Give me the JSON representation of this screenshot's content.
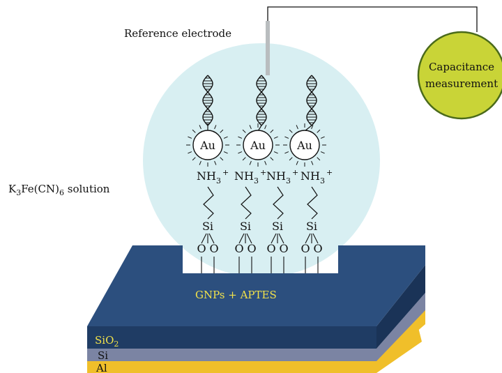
{
  "labels": {
    "reference_electrode": "Reference electrode",
    "capacitance_line1": "Capacitance",
    "capacitance_line2": "measurement",
    "solution_k": "K",
    "solution_sub3": "3",
    "solution_mid": "Fe(CN)",
    "solution_sub6": "6",
    "solution_end": " solution",
    "surface": "GNPs + APTES",
    "sio2_main": "SiO",
    "sio2_sub": "2",
    "si": "Si",
    "al": "Al"
  },
  "molecule": {
    "au": "Au",
    "amine_main": "NH",
    "amine_sub": "3",
    "amine_charge": "+",
    "silicon": "Si",
    "oxygen": "O"
  },
  "colors": {
    "solution": "#d8eff2",
    "substrate_top": "#2c4f7e",
    "substrate_front": "#1f3c64",
    "si_layer": "#7b84a3",
    "al_layer": "#f0bf2a",
    "meter_fill": "#c9d437",
    "meter_stroke": "#4a6a1a",
    "yellow_text": "#f2e24a"
  }
}
